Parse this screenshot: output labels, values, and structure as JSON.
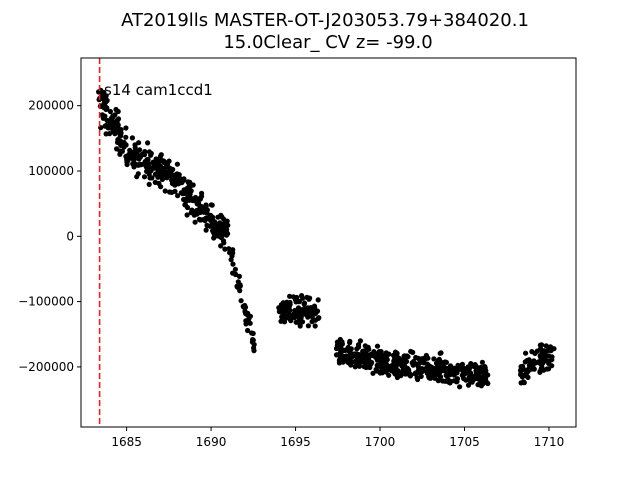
{
  "chart_data": {
    "type": "scatter",
    "title_line1": "AT2019lls  MASTER-OT-J203053.79+384020.1",
    "title_line2": "15.0Clear_ CV z= -99.0",
    "annotation": "s14 cam1ccd1",
    "xlabel": "",
    "ylabel": "",
    "xlim": [
      1682.3,
      1711.6
    ],
    "ylim": [
      -292000,
      273000
    ],
    "xticks": [
      1685,
      1690,
      1695,
      1700,
      1705,
      1710
    ],
    "yticks": [
      -200000,
      -100000,
      0,
      100000,
      200000
    ],
    "xtick_labels": [
      "1685",
      "1690",
      "1695",
      "1700",
      "1705",
      "1710"
    ],
    "ytick_labels": [
      "−200000",
      "−100000",
      "0",
      "100000",
      "200000"
    ],
    "vline": {
      "x": 1683.4,
      "color": "#d62728",
      "style": "dashed"
    },
    "marker_color": "#000000",
    "series": [
      {
        "segments": [
          {
            "x_range": [
              1683.3,
              1685.0
            ],
            "y_trend": [
              205000,
              140000
            ],
            "scatter": 25000,
            "n": 90
          },
          {
            "x_range": [
              1685.0,
              1687.5
            ],
            "y_trend": [
              130000,
              95000
            ],
            "scatter": 22000,
            "n": 120
          },
          {
            "x_range": [
              1687.5,
              1689.5
            ],
            "y_trend": [
              95000,
              40000
            ],
            "scatter": 22000,
            "n": 100
          },
          {
            "x_range": [
              1689.5,
              1691.0
            ],
            "y_trend": [
              40000,
              0
            ],
            "scatter": 20000,
            "n": 80
          },
          {
            "x_range": [
              1691.0,
              1692.6
            ],
            "y_trend": [
              -10000,
              -170000
            ],
            "scatter": 15000,
            "n": 45
          },
          {
            "x_range": [
              1694.0,
              1696.4
            ],
            "y_trend": [
              -115000,
              -115000
            ],
            "scatter": 18000,
            "n": 110
          },
          {
            "x_range": [
              1697.4,
              1700.5
            ],
            "y_trend": [
              -180000,
              -195000
            ],
            "scatter": 18000,
            "n": 160
          },
          {
            "x_range": [
              1700.5,
              1706.4
            ],
            "y_trend": [
              -195000,
              -215000
            ],
            "scatter": 18000,
            "n": 260
          },
          {
            "x_range": [
              1708.3,
              1710.3
            ],
            "y_trend": [
              -205000,
              -180000
            ],
            "scatter": 18000,
            "n": 80
          }
        ]
      }
    ]
  }
}
